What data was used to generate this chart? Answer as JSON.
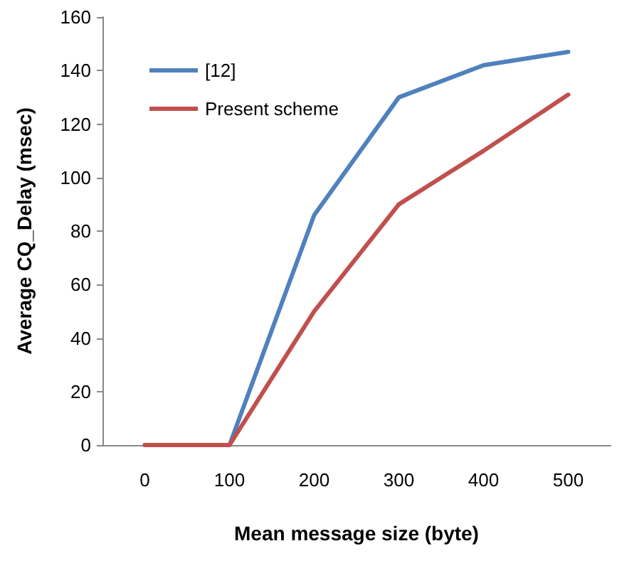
{
  "chart_data": {
    "type": "line",
    "xlabel": "Mean message size (byte)",
    "ylabel": "Average CQ_Delay (msec)",
    "categories": [
      "0",
      "100",
      "200",
      "300",
      "400",
      "500"
    ],
    "series": [
      {
        "name": "[12]",
        "color": "#4f81bd",
        "values": [
          0,
          0,
          86,
          130,
          142,
          147
        ]
      },
      {
        "name": "Present scheme",
        "color": "#c0504d",
        "values": [
          0,
          0,
          50,
          90,
          110,
          131
        ]
      }
    ],
    "ylim": [
      0,
      160
    ],
    "yticks": [
      0,
      20,
      40,
      60,
      80,
      100,
      120,
      140,
      160
    ],
    "grid": false,
    "legend": "top left",
    "marker": "none"
  }
}
